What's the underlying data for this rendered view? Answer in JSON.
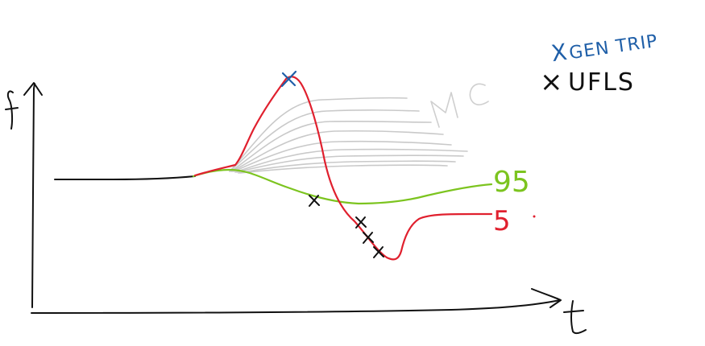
{
  "axes": {
    "y_label": "f",
    "x_label": "t"
  },
  "legend": {
    "gen_trip": {
      "marker": "X",
      "label": "GEN TRIP",
      "color": "#1f5fa8"
    },
    "ufls": {
      "marker": "×",
      "label": "UFLS",
      "color": "#111111"
    }
  },
  "annotations": {
    "monte_carlo": "MC"
  },
  "curve_labels": {
    "green": "95",
    "red": "5"
  },
  "colors": {
    "axis": "#111111",
    "green": "#7cc41f",
    "red": "#e0202e",
    "mc": "#c9c9c9",
    "blue": "#1f5fa8"
  }
}
